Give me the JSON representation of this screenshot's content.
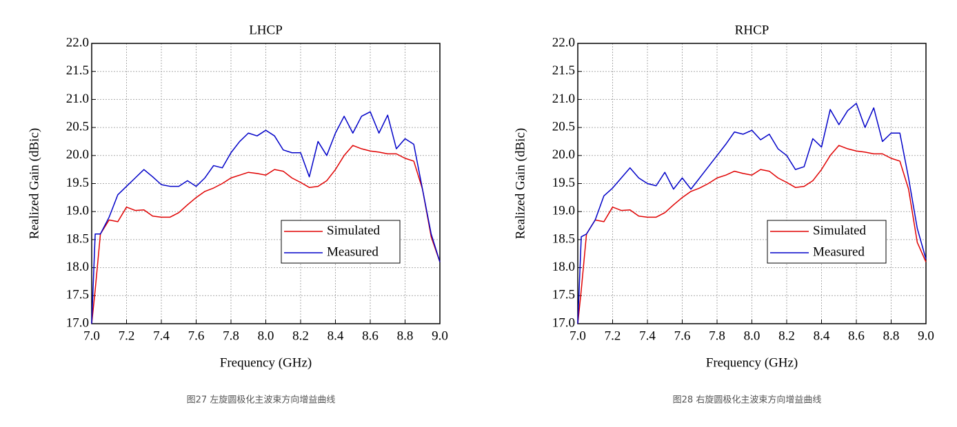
{
  "chart_data": [
    {
      "type": "line",
      "title": "LHCP",
      "xlabel": "Frequency (GHz)",
      "ylabel": "Realized Gain (dBic)",
      "x": [
        7.0,
        7.02,
        7.05,
        7.1,
        7.15,
        7.2,
        7.25,
        7.3,
        7.35,
        7.4,
        7.45,
        7.5,
        7.55,
        7.6,
        7.65,
        7.7,
        7.75,
        7.8,
        7.85,
        7.9,
        7.95,
        8.0,
        8.05,
        8.1,
        8.15,
        8.2,
        8.25,
        8.3,
        8.35,
        8.4,
        8.45,
        8.5,
        8.55,
        8.6,
        8.65,
        8.7,
        8.75,
        8.8,
        8.85,
        8.9,
        8.95,
        9.0
      ],
      "series": [
        {
          "name": "Simulated",
          "color": "#e00000",
          "values": [
            17.0,
            17.6,
            18.6,
            18.85,
            18.82,
            19.08,
            19.02,
            19.03,
            18.92,
            18.9,
            18.9,
            18.98,
            19.12,
            19.25,
            19.36,
            19.42,
            19.5,
            19.6,
            19.65,
            19.7,
            19.68,
            19.65,
            19.75,
            19.72,
            19.6,
            19.52,
            19.43,
            19.45,
            19.55,
            19.75,
            20.0,
            20.18,
            20.12,
            20.08,
            20.06,
            20.03,
            20.03,
            19.95,
            19.9,
            19.4,
            18.55,
            18.1
          ]
        },
        {
          "name": "Measured",
          "color": "#0000c8",
          "values": [
            17.0,
            18.6,
            18.6,
            18.9,
            19.3,
            19.45,
            19.6,
            19.75,
            19.62,
            19.48,
            19.45,
            19.45,
            19.55,
            19.45,
            19.6,
            19.82,
            19.78,
            20.05,
            20.25,
            20.4,
            20.35,
            20.45,
            20.35,
            20.1,
            20.05,
            20.05,
            19.62,
            20.25,
            20.0,
            20.4,
            20.7,
            20.4,
            20.7,
            20.78,
            20.4,
            20.72,
            20.12,
            20.3,
            20.2,
            19.4,
            18.6,
            18.1
          ]
        }
      ],
      "xlim": [
        7.0,
        9.0
      ],
      "xticks": [
        {
          "value": 7,
          "label": "7.0"
        },
        7.2,
        7.4,
        7.6,
        7.8,
        {
          "value": 8,
          "label": "8.0"
        },
        8.2,
        8.4,
        8.6,
        8.8,
        {
          "value": 9,
          "label": "9.0"
        }
      ],
      "ylim": [
        17.0,
        22.0
      ],
      "yticks": [
        {
          "value": 17,
          "label": "17.0"
        },
        17.5,
        {
          "value": 18,
          "label": "18.0"
        },
        18.5,
        {
          "value": 19,
          "label": "19.0"
        },
        19.5,
        {
          "value": 20,
          "label": "20.0"
        },
        20.5,
        {
          "value": 21,
          "label": "21.0"
        },
        21.5,
        {
          "value": 22,
          "label": "22.0"
        }
      ],
      "grid": true,
      "legend": "lower right",
      "caption": "图27 左旋圆极化主波束方向增益曲线"
    },
    {
      "type": "line",
      "title": "RHCP",
      "xlabel": "Frequency (GHz)",
      "ylabel": "Realized Gain (dBic)",
      "x": [
        7.0,
        7.02,
        7.05,
        7.1,
        7.15,
        7.2,
        7.25,
        7.3,
        7.35,
        7.4,
        7.45,
        7.5,
        7.55,
        7.6,
        7.65,
        7.7,
        7.75,
        7.8,
        7.85,
        7.9,
        7.95,
        8.0,
        8.05,
        8.1,
        8.15,
        8.2,
        8.25,
        8.3,
        8.35,
        8.4,
        8.45,
        8.5,
        8.55,
        8.6,
        8.65,
        8.7,
        8.75,
        8.8,
        8.85,
        8.9,
        8.95,
        9.0
      ],
      "series": [
        {
          "name": "Simulated",
          "color": "#e00000",
          "values": [
            17.0,
            17.6,
            18.6,
            18.85,
            18.82,
            19.08,
            19.02,
            19.03,
            18.92,
            18.9,
            18.9,
            18.98,
            19.12,
            19.25,
            19.36,
            19.42,
            19.5,
            19.6,
            19.65,
            19.72,
            19.68,
            19.65,
            19.75,
            19.72,
            19.6,
            19.52,
            19.43,
            19.45,
            19.55,
            19.75,
            20.0,
            20.18,
            20.12,
            20.08,
            20.06,
            20.03,
            20.03,
            19.95,
            19.9,
            19.4,
            18.45,
            18.1
          ]
        },
        {
          "name": "Measured",
          "color": "#0000c8",
          "values": [
            17.0,
            18.55,
            18.6,
            18.85,
            19.28,
            19.42,
            19.6,
            19.78,
            19.6,
            19.5,
            19.46,
            19.7,
            19.4,
            19.6,
            19.4,
            19.6,
            19.8,
            20.0,
            20.2,
            20.42,
            20.38,
            20.45,
            20.28,
            20.38,
            20.12,
            20.0,
            19.75,
            19.8,
            20.3,
            20.15,
            20.82,
            20.55,
            20.8,
            20.93,
            20.5,
            20.85,
            20.25,
            20.4,
            20.4,
            19.6,
            18.7,
            18.15
          ]
        }
      ],
      "xlim": [
        7.0,
        9.0
      ],
      "xticks": [
        {
          "value": 7,
          "label": "7.0"
        },
        7.2,
        7.4,
        7.6,
        7.8,
        {
          "value": 8,
          "label": "8.0"
        },
        8.2,
        8.4,
        8.6,
        8.8,
        {
          "value": 9,
          "label": "9.0"
        }
      ],
      "ylim": [
        17.0,
        22.0
      ],
      "yticks": [
        {
          "value": 17,
          "label": "17.0"
        },
        17.5,
        {
          "value": 18,
          "label": "18.0"
        },
        18.5,
        {
          "value": 19,
          "label": "19.0"
        },
        19.5,
        {
          "value": 20,
          "label": "20.0"
        },
        20.5,
        {
          "value": 21,
          "label": "21.0"
        },
        21.5,
        {
          "value": 22,
          "label": "22.0"
        }
      ],
      "grid": true,
      "legend": "lower right",
      "caption": "图28 右旋圆极化主波束方向增益曲线"
    }
  ]
}
